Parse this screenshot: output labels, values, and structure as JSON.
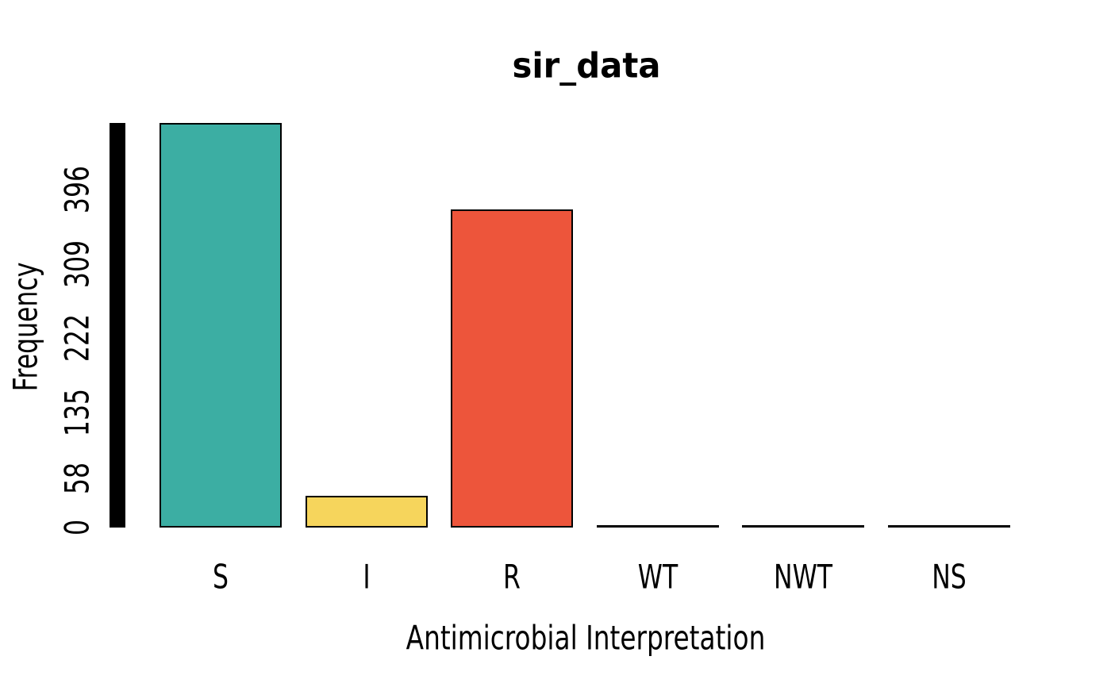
{
  "chart_data": {
    "type": "bar",
    "title": "sir_data",
    "xlabel": "Antimicrobial Interpretation",
    "ylabel": "Frequency",
    "categories": [
      "S",
      "I",
      "R",
      "WT",
      "NWT",
      "NS"
    ],
    "values": [
      475,
      37,
      373,
      0,
      0,
      0
    ],
    "bar_colors": [
      "#3CAEA3",
      "#F6D55C",
      "#ED553B",
      "#000000",
      "#000000",
      "#000000"
    ],
    "bar_border_color": "#000000",
    "y_ticks": [
      0,
      58,
      135,
      222,
      309,
      396
    ],
    "ylim": [
      0,
      475
    ],
    "grid": false,
    "legend": "none",
    "background_color": "#FFFFFF",
    "text_color": "#000000",
    "y_axis_bar_color": "#000000"
  }
}
